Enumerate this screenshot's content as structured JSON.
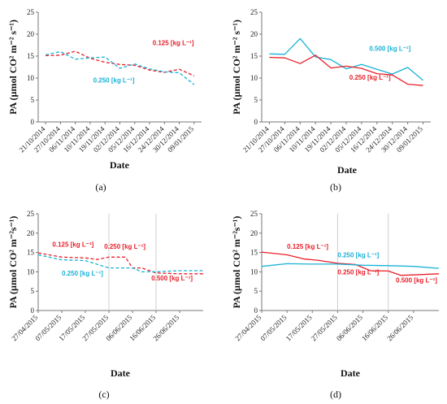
{
  "chart_data": [
    {
      "type": "line",
      "caption": "(a)",
      "xlabel": "Date",
      "ylabel": "PA (µmol CO² m⁻² s⁻¹)",
      "ylim": [
        0,
        25
      ],
      "yticks": [
        0,
        5,
        10,
        15,
        20,
        25
      ],
      "categories": [
        "21/10/2014",
        "27/10/2014",
        "06/11/2014",
        "10/11/2014",
        "19/11/2014",
        "02/12/2014",
        "05/12/2014",
        "16/12/2014",
        "24/12/2014",
        "30/12/2014",
        "09/01/2015"
      ],
      "series": [
        {
          "name": "0.125 [kg L⁻¹]",
          "color": "#e8202a",
          "dash": true,
          "values": [
            15.1,
            15.2,
            16.1,
            14.5,
            13.6,
            13.1,
            12.9,
            11.8,
            11.3,
            12.0,
            10.5
          ]
        },
        {
          "name": "0.250 [kg L⁻¹]",
          "color": "#19b2d6",
          "dash": true,
          "values": [
            15.3,
            16.0,
            14.3,
            14.6,
            14.8,
            12.2,
            13.2,
            12.1,
            11.4,
            11.2,
            8.5
          ]
        }
      ],
      "annotations": [
        {
          "text": "0.125 [kg L⁻¹]",
          "color": "#e8202a",
          "x": 7.2,
          "y": 17.5
        },
        {
          "text": "0.250 [kg L⁻¹]",
          "color": "#19b2d6",
          "x": 3.2,
          "y": 9.0
        }
      ],
      "vlines": []
    },
    {
      "type": "line",
      "caption": "(b)",
      "xlabel": "Date",
      "ylabel": "PA (µmol CO² m⁻² s⁻¹)",
      "ylim": [
        0,
        25
      ],
      "yticks": [
        0,
        5,
        10,
        15,
        20,
        25
      ],
      "categories": [
        "21/10/2014",
        "27/10/2014",
        "06/11/2014",
        "10/11/2014",
        "19/11/2014",
        "02/12/2014",
        "05/12/2014",
        "16/12/2014",
        "24/12/2014",
        "30/12/2014",
        "09/01/2015"
      ],
      "series": [
        {
          "name": "0.500 [kg L⁻¹]",
          "color": "#19b2d6",
          "dash": false,
          "values": [
            15.5,
            15.4,
            19.0,
            14.8,
            14.2,
            12.1,
            13.1,
            12.0,
            10.9,
            12.4,
            9.5
          ]
        },
        {
          "name": "0.250 [kg L⁻¹]",
          "color": "#e8202a",
          "dash": false,
          "values": [
            14.7,
            14.6,
            13.3,
            15.2,
            12.3,
            12.7,
            12.2,
            11.0,
            10.7,
            8.6,
            8.3
          ]
        }
      ],
      "annotations": [
        {
          "text": "0.500 [kg L⁻¹]",
          "color": "#19b2d6",
          "x": 6.5,
          "y": 16.2
        },
        {
          "text": "0.250 [kg L⁻¹]",
          "color": "#e8202a",
          "x": 5.2,
          "y": 9.6
        }
      ],
      "vlines": []
    },
    {
      "type": "line",
      "caption": "(c)",
      "xlabel": "Date",
      "ylabel": "PA (µmol CO² m⁻²s⁻¹)",
      "ylim": [
        0,
        25
      ],
      "yticks": [
        0,
        5,
        10,
        15,
        20,
        25
      ],
      "categories": [
        "27/04/2015",
        "07/05/2015",
        "17/05/2015",
        "27/05/2015",
        "06/06/2015",
        "16/06/2015",
        "26/06/2015"
      ],
      "xrange": [
        0,
        7
      ],
      "series": [
        {
          "name": "0.125/0.250/0.500 [kg L⁻¹]",
          "color": "#e8202a",
          "dash": true,
          "x": [
            0,
            1,
            2,
            2.5,
            3,
            3.7,
            4,
            4.4,
            5,
            6,
            7
          ],
          "values": [
            14.9,
            13.8,
            13.6,
            13.2,
            13.8,
            13.8,
            11.0,
            11.0,
            9.7,
            9.5,
            9.5
          ]
        },
        {
          "name": "0.125/0.250/0.500 [kg L⁻¹]",
          "color": "#19b2d6",
          "dash": true,
          "x": [
            0,
            1,
            2,
            3,
            4,
            4.4,
            5,
            6,
            7
          ],
          "values": [
            14.4,
            13.1,
            12.9,
            11.0,
            11.0,
            10.0,
            10.0,
            10.3,
            10.3
          ]
        }
      ],
      "annotations": [
        {
          "text": "0.125 [kg L⁻¹]",
          "color": "#e8202a",
          "x": 0.6,
          "y": 16.5
        },
        {
          "text": "0.250 [kg L⁻¹]",
          "color": "#e8202a",
          "x": 2.8,
          "y": 16.0
        },
        {
          "text": "0.250 [kg L⁻¹]",
          "color": "#19b2d6",
          "x": 1.0,
          "y": 9.0
        },
        {
          "text": "0.500 [kg L⁻¹]",
          "color": "#e8202a",
          "x": 4.8,
          "y": 7.8
        }
      ],
      "vlines": [
        3,
        5
      ]
    },
    {
      "type": "line",
      "caption": "(d)",
      "xlabel": "Date",
      "ylabel": "PA (µmol CO² m⁻²s⁻¹)",
      "ylim": [
        0,
        25
      ],
      "yticks": [
        0,
        5,
        10,
        15,
        20,
        25
      ],
      "categories": [
        "27/04/2015",
        "07/05/2015",
        "17/05/2015",
        "27/05/2015",
        "06/06/2015",
        "16/06/2015",
        "26/06/2015"
      ],
      "xrange": [
        0,
        7
      ],
      "series": [
        {
          "name": "0.125/0.250/0.500 [kg L⁻¹]",
          "color": "#e8202a",
          "dash": false,
          "x": [
            0,
            1,
            1.7,
            2.2,
            3,
            3.7,
            4.3,
            5,
            5.5,
            6,
            7
          ],
          "values": [
            15.1,
            14.4,
            13.3,
            13.0,
            12.2,
            11.9,
            10.3,
            10.2,
            9.1,
            9.2,
            9.5
          ]
        },
        {
          "name": "0.125/0.250/0.500 [kg L⁻¹]",
          "color": "#19b2d6",
          "dash": false,
          "x": [
            0,
            1,
            2,
            3,
            4,
            5,
            6,
            7
          ],
          "values": [
            11.4,
            12.1,
            12.0,
            12.0,
            11.7,
            11.6,
            11.4,
            10.9
          ]
        }
      ],
      "annotations": [
        {
          "text": "0.125 [kg L⁻¹]",
          "color": "#e8202a",
          "x": 1.0,
          "y": 16.0
        },
        {
          "text": "0.250 [kg L⁻¹]",
          "color": "#19b2d6",
          "x": 3.0,
          "y": 13.8
        },
        {
          "text": "0.250 [kg L⁻¹]",
          "color": "#e8202a",
          "x": 3.0,
          "y": 9.3
        },
        {
          "text": "0.500 [kg L⁻¹]",
          "color": "#e8202a",
          "x": 5.3,
          "y": 7.3
        }
      ],
      "vlines": [
        3,
        5
      ]
    }
  ]
}
